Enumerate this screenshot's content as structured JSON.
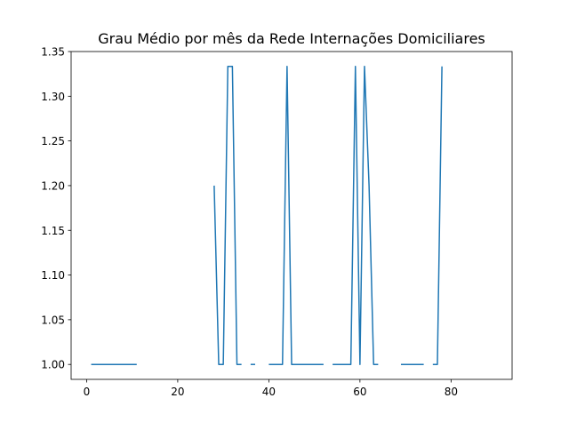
{
  "chart_data": {
    "type": "line",
    "title": "Grau Médio por mês da Rede Internações Domiciliares",
    "xlabel": "",
    "ylabel": "",
    "xlim": [
      -3.4,
      93.4
    ],
    "ylim": [
      0.9833,
      1.35
    ],
    "xticks": [
      0,
      20,
      40,
      60,
      80
    ],
    "xtick_labels": [
      "0",
      "20",
      "40",
      "60",
      "80"
    ],
    "yticks": [
      1.0,
      1.05,
      1.1,
      1.15,
      1.2,
      1.25,
      1.3,
      1.35
    ],
    "ytick_labels": [
      "1.00",
      "1.05",
      "1.10",
      "1.15",
      "1.20",
      "1.25",
      "1.30",
      "1.35"
    ],
    "grid": false,
    "line_color": "#1f77b4",
    "series": [
      {
        "x": [
          1,
          2,
          3,
          4,
          5,
          6,
          7,
          8,
          9,
          10,
          11,
          12,
          13,
          14,
          15,
          16,
          17,
          18,
          19,
          20,
          21,
          22,
          23,
          24,
          25,
          26,
          27,
          28,
          29,
          30,
          31,
          32,
          33,
          34,
          35,
          36,
          37,
          38,
          39,
          40,
          41,
          42,
          43,
          44,
          45,
          46,
          47,
          48,
          49,
          50,
          51,
          52,
          53,
          54,
          55,
          56,
          57,
          58,
          59,
          60,
          61,
          62,
          63,
          64,
          65,
          66,
          67,
          68,
          69,
          70,
          71,
          72,
          73,
          74,
          75,
          76,
          77,
          78
        ],
        "y": [
          1,
          1,
          1,
          1,
          1,
          1,
          1,
          1,
          1,
          1,
          1,
          null,
          null,
          null,
          null,
          null,
          null,
          null,
          null,
          null,
          null,
          null,
          null,
          null,
          null,
          null,
          null,
          1.2,
          1,
          1,
          1.3333,
          1.3333,
          1,
          1,
          null,
          1,
          1,
          null,
          null,
          1,
          1,
          1,
          1,
          1.3333,
          1,
          1,
          1,
          1,
          1,
          1,
          1,
          1,
          null,
          1,
          1,
          1,
          1,
          1,
          1.3333,
          1,
          1.3333,
          1.2,
          1,
          1,
          null,
          null,
          null,
          null,
          1,
          1,
          1,
          1,
          1,
          1,
          null,
          1,
          1,
          1.3333
        ]
      }
    ]
  }
}
